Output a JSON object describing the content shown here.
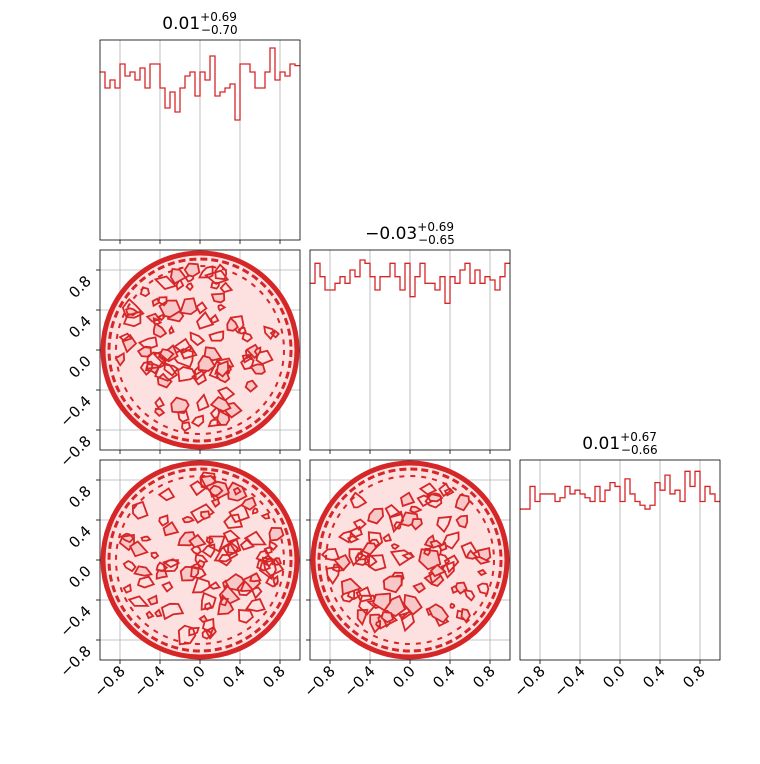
{
  "chart_data": {
    "type": "corner",
    "color": "#d62728",
    "panels": [
      {
        "kind": "hist",
        "row": 0,
        "col": 0,
        "title": {
          "median": "0.01",
          "plus": "+0.69",
          "minus": "−0.70"
        },
        "x_range": [
          -1,
          1
        ],
        "bins": 40,
        "values": [
          80,
          60,
          70,
          60,
          90,
          75,
          80,
          70,
          85,
          60,
          90,
          90,
          60,
          35,
          55,
          30,
          60,
          75,
          80,
          50,
          80,
          70,
          100,
          50,
          55,
          60,
          65,
          20,
          90,
          90,
          80,
          60,
          60,
          80,
          110,
          70,
          80,
          75,
          90,
          88
        ],
        "ylim": [
          -130,
          120
        ],
        "y_ticks": []
      },
      {
        "kind": "hist",
        "row": 1,
        "col": 1,
        "title": {
          "median": "−0.03",
          "plus": "+0.69",
          "minus": "−0.65"
        },
        "x_range": [
          -1,
          1
        ],
        "bins": 40,
        "values": [
          50,
          80,
          60,
          40,
          40,
          50,
          60,
          50,
          70,
          60,
          85,
          80,
          60,
          40,
          60,
          60,
          80,
          60,
          40,
          80,
          30,
          60,
          80,
          50,
          50,
          40,
          60,
          20,
          60,
          50,
          70,
          80,
          50,
          70,
          50,
          60,
          55,
          40,
          60,
          80
        ],
        "ylim": [
          -200,
          100
        ],
        "y_ticks": []
      },
      {
        "kind": "hist",
        "row": 2,
        "col": 2,
        "title": {
          "median": "0.01",
          "plus": "+0.67",
          "minus": "−0.66"
        },
        "x_range": [
          -1,
          1
        ],
        "bins": 40,
        "values": [
          50,
          50,
          80,
          60,
          70,
          70,
          70,
          60,
          65,
          80,
          70,
          75,
          70,
          65,
          60,
          80,
          60,
          75,
          85,
          80,
          60,
          90,
          70,
          60,
          55,
          50,
          55,
          85,
          75,
          95,
          70,
          75,
          60,
          100,
          80,
          100,
          60,
          80,
          70,
          60
        ],
        "ylim": [
          -150,
          115
        ],
        "y_ticks": []
      },
      {
        "kind": "contour",
        "row": 1,
        "col": 0,
        "x_range": [
          -1,
          1
        ],
        "y_range": [
          -1,
          1
        ],
        "support": "unit-circle"
      },
      {
        "kind": "contour",
        "row": 2,
        "col": 0,
        "x_range": [
          -1,
          1
        ],
        "y_range": [
          -1,
          1
        ],
        "support": "unit-circle"
      },
      {
        "kind": "contour",
        "row": 2,
        "col": 1,
        "x_range": [
          -1,
          1
        ],
        "y_range": [
          -1,
          1
        ],
        "support": "unit-circle"
      }
    ],
    "tick_values": [
      -0.8,
      -0.4,
      0.0,
      0.4,
      0.8
    ],
    "tick_labels": [
      "−0.8",
      "−0.4",
      "0.0",
      "0.4",
      "0.8"
    ],
    "grid": true,
    "legend": "none"
  }
}
